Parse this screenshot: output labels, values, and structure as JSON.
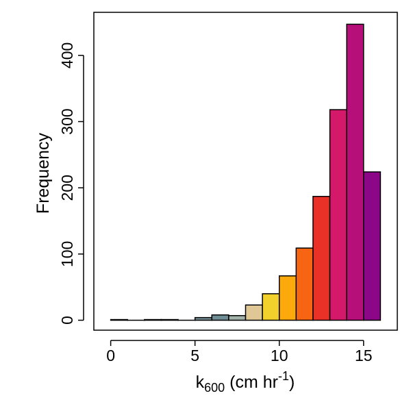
{
  "chart_data": {
    "type": "bar",
    "subtype": "histogram",
    "xlabel": {
      "base": "k",
      "subscript": "600",
      "middle": " (cm hr",
      "superscript": "-1",
      "end": ")"
    },
    "ylabel": "Frequency",
    "xlim": [
      -1,
      17
    ],
    "ylim": [
      -15,
      465
    ],
    "xticks": [
      0,
      5,
      10,
      15
    ],
    "yticks": [
      0,
      100,
      200,
      300,
      400
    ],
    "grid": false,
    "legend": "none",
    "bins": [
      {
        "x0": 0,
        "x1": 1,
        "count": 1,
        "color": "#6b8a93"
      },
      {
        "x0": 1,
        "x1": 2,
        "count": 0,
        "color": "#6b8a93"
      },
      {
        "x0": 2,
        "x1": 3,
        "count": 1,
        "color": "#6b8a93"
      },
      {
        "x0": 3,
        "x1": 4,
        "count": 1,
        "color": "#6b8a93"
      },
      {
        "x0": 4,
        "x1": 5,
        "count": 0,
        "color": "#6b8a93"
      },
      {
        "x0": 5,
        "x1": 6,
        "count": 4,
        "color": "#7a969c"
      },
      {
        "x0": 6,
        "x1": 7,
        "count": 8,
        "color": "#6e8d95"
      },
      {
        "x0": 7,
        "x1": 8,
        "count": 7,
        "color": "#a3b3aa"
      },
      {
        "x0": 8,
        "x1": 9,
        "count": 23,
        "color": "#dfc796"
      },
      {
        "x0": 9,
        "x1": 10,
        "count": 40,
        "color": "#f3d12d"
      },
      {
        "x0": 10,
        "x1": 11,
        "count": 67,
        "color": "#fca90b"
      },
      {
        "x0": 11,
        "x1": 12,
        "count": 109,
        "color": "#f76513"
      },
      {
        "x0": 12,
        "x1": 13,
        "count": 187,
        "color": "#ea3127"
      },
      {
        "x0": 13,
        "x1": 14,
        "count": 318,
        "color": "#d4186a"
      },
      {
        "x0": 14,
        "x1": 15,
        "count": 447,
        "color": "#b60f7a"
      },
      {
        "x0": 15,
        "x1": 16,
        "count": 224,
        "color": "#8c0787"
      }
    ]
  }
}
